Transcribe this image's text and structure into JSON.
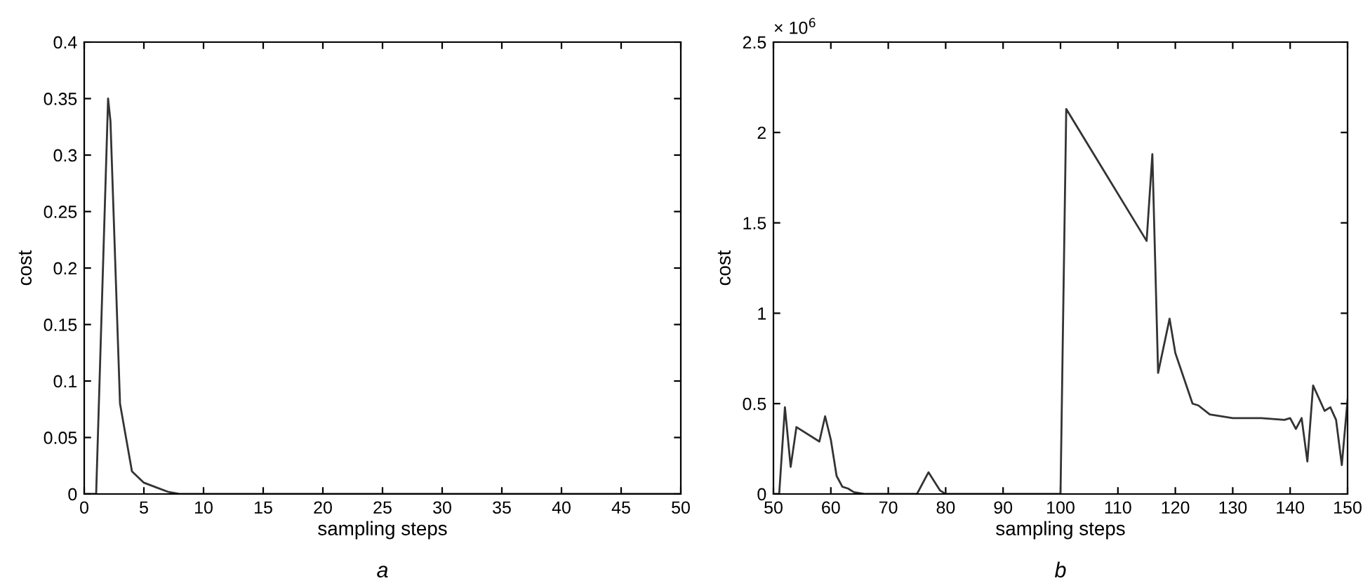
{
  "chart_data": [
    {
      "type": "line",
      "xlabel": "sampling steps",
      "ylabel": "cost",
      "annotations": [
        "a"
      ],
      "x": [
        0,
        1,
        2,
        2.2,
        3,
        4,
        5,
        6,
        7,
        8,
        50
      ],
      "series": [
        {
          "color": "#333333",
          "values": [
            0,
            0,
            0.35,
            0.33,
            0.08,
            0.02,
            0.01,
            0.006,
            0.002,
            0,
            0
          ]
        }
      ],
      "xlim": [
        0,
        50
      ],
      "xticks": [
        0,
        5,
        10,
        15,
        20,
        25,
        30,
        35,
        40,
        45,
        50
      ],
      "ylim": [
        0,
        0.4
      ],
      "yticks": [
        0,
        0.05,
        0.1,
        0.15,
        0.2,
        0.25,
        0.3,
        0.35,
        0.4
      ],
      "grid": false,
      "marker": "none",
      "line_style": "solid"
    },
    {
      "type": "line",
      "xlabel": "sampling steps",
      "ylabel": "cost",
      "annotations": [
        "× 10$^{6}$",
        "b"
      ],
      "x": [
        50,
        51,
        52,
        53,
        54,
        58,
        59,
        60,
        61,
        62,
        63,
        64,
        66,
        75,
        77,
        79,
        80,
        100,
        101,
        115,
        116,
        117,
        119,
        120,
        123,
        124,
        126,
        130,
        135,
        139,
        140,
        141,
        142,
        143,
        144,
        146,
        147,
        148,
        149,
        150
      ],
      "series": [
        {
          "color": "#333333",
          "values": [
            0,
            0,
            0.48,
            0.15,
            0.37,
            0.29,
            0.43,
            0.3,
            0.1,
            0.04,
            0.03,
            0.01,
            0,
            0,
            0.12,
            0.02,
            0,
            0,
            2.13,
            1.4,
            1.88,
            0.67,
            0.97,
            0.78,
            0.5,
            0.49,
            0.44,
            0.42,
            0.42,
            0.41,
            0.42,
            0.36,
            0.42,
            0.18,
            0.6,
            0.46,
            0.48,
            0.41,
            0.16,
            0.52
          ]
        }
      ],
      "xlim": [
        50,
        150
      ],
      "xticks": [
        50,
        60,
        70,
        80,
        90,
        100,
        110,
        120,
        130,
        140,
        150
      ],
      "ylim": [
        0,
        2.5
      ],
      "yticks": [
        0,
        0.5,
        1,
        1.5,
        2,
        2.5
      ],
      "grid": false,
      "marker": "none",
      "line_style": "solid"
    }
  ]
}
